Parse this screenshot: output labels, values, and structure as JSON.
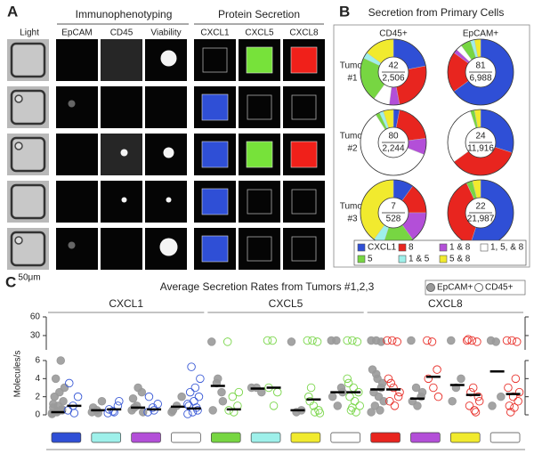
{
  "panel_a": {
    "label": "A",
    "light": "Light",
    "group1": "Immunophenotyping",
    "group2": "Protein Secretion",
    "columns": [
      "EpCAM",
      "CD45",
      "Viability",
      "CXCL1",
      "CXCL5",
      "CXCL8"
    ],
    "scale_bar": "50μm"
  },
  "panel_b_label": "B",
  "panel_c_label": "C",
  "chart_data": [
    {
      "type": "donut",
      "title": "Secretion from Primary Cells",
      "columns": [
        "CD45+",
        "EpCAM+"
      ],
      "rows": [
        {
          "label": "Tumor",
          "number": "#1"
        },
        {
          "label": "Tumor",
          "number": "#2"
        },
        {
          "label": "Tumor",
          "number": "#3"
        }
      ],
      "categories": [
        "CXCL1",
        "8",
        "1 & 8",
        "1, 5, & 8",
        "5",
        "1 & 5",
        "5 & 8"
      ],
      "colors": [
        "#2f4fd6",
        "#e8251f",
        "#b34fd8",
        "#ffffff",
        "#77d642",
        "#9ef0ea",
        "#f1ea2e"
      ],
      "donuts": [
        [
          {
            "values": [
              22,
              25,
              5,
              8,
              22,
              3,
              15
            ],
            "count": "42",
            "total": "2,506"
          },
          {
            "values": [
              65,
              20,
              2,
              3,
              5,
              2,
              3
            ],
            "count": "81",
            "total": "6,988"
          }
        ],
        [
          {
            "values": [
              3,
              20,
              8,
              60,
              2,
              2,
              5
            ],
            "count": "80",
            "total": "2,244"
          },
          {
            "values": [
              30,
              35,
              0,
              30,
              2,
              0,
              3
            ],
            "count": "24",
            "total": "11,916"
          }
        ],
        [
          {
            "values": [
              10,
              15,
              15,
              0,
              15,
              5,
              40
            ],
            "count": "7",
            "total": "528"
          },
          {
            "values": [
              55,
              38,
              0,
              0,
              3,
              0,
              4
            ],
            "count": "22",
            "total": "21,987"
          }
        ]
      ]
    },
    {
      "type": "scatter",
      "title": "Average Secretion Rates from Tumors #1,2,3",
      "ylabel": "Molecules/s",
      "ylim": [
        0,
        6
      ],
      "yticks": [
        0,
        2,
        4,
        6
      ],
      "upper_ylim": [
        7,
        60
      ],
      "upper_yticks": [
        30,
        60
      ],
      "series": [
        {
          "name": "EpCAM+",
          "color": "#9a9a9a"
        },
        {
          "name": "CD45+",
          "color": "#ffffff"
        }
      ],
      "sections": [
        {
          "name": "CXCL1",
          "color": "#3a5ad6"
        },
        {
          "name": "CXCL5",
          "color": "#7ad64a"
        },
        {
          "name": "CXCL8",
          "color": "#e8302a"
        }
      ],
      "groups": [
        {
          "section": 0,
          "color": "#2f4fd6",
          "epcam": [
            0.2,
            0.3,
            0.5,
            0.8,
            1,
            1.5,
            2,
            2.5,
            3,
            4,
            6,
            0.1,
            0.4,
            0.6,
            1.2
          ],
          "epcam_mean": 0.3,
          "cd45": [
            0.5,
            1,
            2,
            3.5,
            0.2
          ],
          "cd45_mean": 1.0
        },
        {
          "section": 0,
          "color": "#9ef0ea",
          "epcam": [
            0.3,
            0.5,
            1.5,
            0.8,
            0.2
          ],
          "epcam_mean": 0.5,
          "cd45": [
            0.2,
            0.4,
            1,
            0.6,
            0.3,
            1.5
          ],
          "cd45_mean": 0.6
        },
        {
          "section": 0,
          "color": "#b34fd8",
          "epcam": [
            0.5,
            1,
            2.5,
            1.8,
            3,
            0.3,
            0.8
          ],
          "epcam_mean": 0.8,
          "cd45": [
            0.3,
            0.8,
            1.2,
            2,
            0.5
          ],
          "cd45_mean": 0.6
        },
        {
          "section": 0,
          "color": "#ffffff",
          "epcam": [
            0.3,
            1,
            2,
            0.5
          ],
          "epcam_mean": 0.9,
          "cd45": [
            0.1,
            0.3,
            0.5,
            1,
            1.5,
            2,
            2.5,
            3,
            4,
            5.3,
            0.8,
            1.2
          ],
          "cd45_mean": 0.7
        },
        {
          "section": 1,
          "color": "#77d642",
          "epcam": [
            20,
            3.5,
            2.5,
            0.5,
            4,
            1.5
          ],
          "epcam_mean": 3.2,
          "cd45": [
            20,
            2,
            1,
            0.5,
            0.3,
            2.5
          ],
          "cd45_mean": 0.6
        },
        {
          "section": 1,
          "color": "#9ef0ea",
          "epcam": [
            3,
            3,
            2.5
          ],
          "epcam_mean": 2.9,
          "cd45": [
            22,
            22,
            2.5,
            3,
            1
          ],
          "cd45_mean": 3.0
        },
        {
          "section": 1,
          "color": "#f1ea2e",
          "epcam": [
            20,
            0.3,
            0.5
          ],
          "epcam_mean": 0.5,
          "cd45": [
            22,
            22,
            20,
            2,
            1,
            0.5,
            1.5,
            0.3,
            0.2,
            3
          ],
          "cd45_mean": 1.7
        },
        {
          "section": 1,
          "color": "#ffffff",
          "epcam": [
            22,
            22,
            3,
            2,
            1,
            2.5
          ],
          "epcam_mean": 2.5,
          "cd45": [
            22,
            22,
            20,
            3.5,
            3,
            2.5,
            2,
            1.5,
            1,
            0.5,
            0.3,
            4,
            0.8
          ],
          "cd45_mean": 2.5
        },
        {
          "section": 2,
          "color": "#e8251f",
          "epcam": [
            22,
            22,
            20,
            5,
            4,
            3.5,
            2.5,
            2,
            1.5,
            1,
            0.5,
            0.3,
            4.5,
            3
          ],
          "epcam_mean": 2.8,
          "cd45": [
            22,
            22,
            20,
            4,
            3,
            2,
            1.5,
            1,
            2.5,
            3.5
          ],
          "cd45_mean": 2.8
        },
        {
          "section": 2,
          "color": "#b34fd8",
          "epcam": [
            22,
            3,
            2,
            1.5,
            1,
            2.5
          ],
          "epcam_mean": 1.8,
          "cd45": [
            22,
            20,
            5,
            4,
            3,
            2
          ],
          "cd45_mean": 4.2
        },
        {
          "section": 2,
          "color": "#f1ea2e",
          "epcam": [
            22,
            3,
            4,
            1.5
          ],
          "epcam_mean": 3.3,
          "cd45": [
            22,
            22,
            20,
            24,
            3,
            2,
            1,
            0.5,
            1.5,
            2.5,
            0.3
          ],
          "cd45_mean": 2.2
        },
        {
          "section": 2,
          "color": "#ffffff",
          "epcam": [
            22,
            20,
            2,
            1
          ],
          "epcam_mean": 4.8,
          "cd45": [
            22,
            22,
            20,
            3,
            2,
            1.5,
            1,
            0.8,
            2.5,
            0.3,
            4
          ],
          "cd45_mean": 2.3
        }
      ]
    }
  ]
}
